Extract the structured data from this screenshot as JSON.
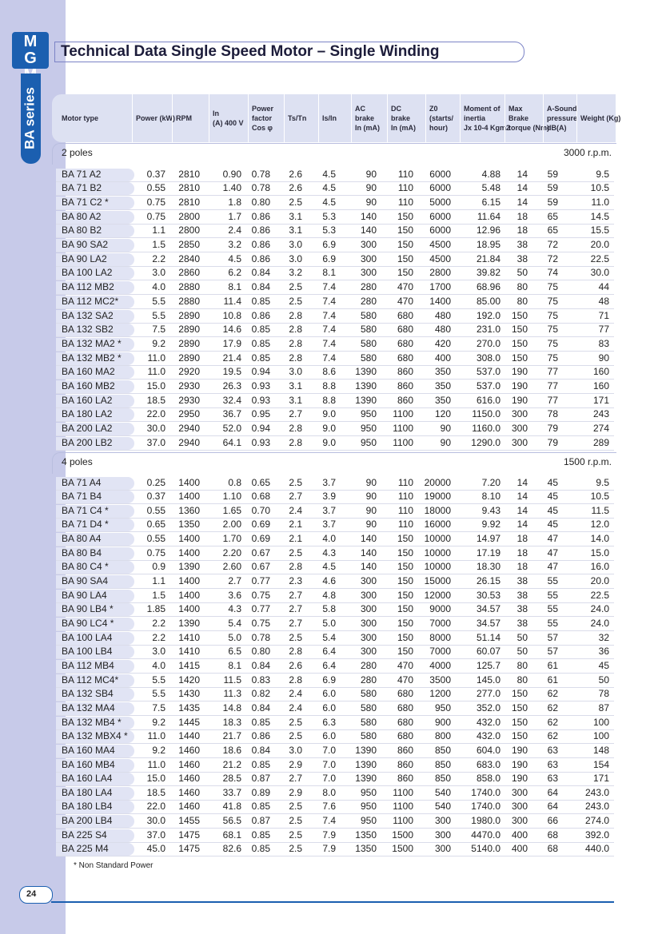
{
  "logo": "MGM",
  "side_tab": "BA series",
  "title": "Technical Data Single Speed Motor – Single Winding",
  "table": {
    "header": [
      [
        "Motor type"
      ],
      [
        "Power (kW)"
      ],
      [
        "RPM"
      ],
      [
        "In",
        "(A) 400 V"
      ],
      [
        "Power",
        "factor",
        "Cos φ"
      ],
      [
        "Ts/Tn"
      ],
      [
        "Is/In"
      ],
      [
        "AC",
        "brake",
        "In (mA)"
      ],
      [
        "DC",
        "brake",
        "In (mA)"
      ],
      [
        "Z0",
        "(starts/",
        "hour)"
      ],
      [
        "Moment of",
        "inertia",
        "Jx 10-4 Kgm2"
      ],
      [
        "Max",
        "Brake",
        "torque (Nm)"
      ],
      [
        "A-Sound",
        "pressure",
        "dB(A)"
      ],
      [
        "Weight (Kg)"
      ]
    ],
    "sections": [
      {
        "label": "2 poles",
        "speed": "3000 r.p.m.",
        "rows": [
          [
            "BA 71 A2",
            "0.37",
            "2810",
            "0.90",
            "0.78",
            "2.6",
            "4.5",
            "90",
            "110",
            "6000",
            "4.88",
            "14",
            "59",
            "9.5"
          ],
          [
            "BA 71 B2",
            "0.55",
            "2810",
            "1.40",
            "0.78",
            "2.6",
            "4.5",
            "90",
            "110",
            "6000",
            "5.48",
            "14",
            "59",
            "10.5"
          ],
          [
            "BA 71 C2 *",
            "0.75",
            "2810",
            "1.8",
            "0.80",
            "2.5",
            "4.5",
            "90",
            "110",
            "5000",
            "6.15",
            "14",
            "59",
            "11.0"
          ],
          [
            "BA 80 A2",
            "0.75",
            "2800",
            "1.7",
            "0.86",
            "3.1",
            "5.3",
            "140",
            "150",
            "6000",
            "11.64",
            "18",
            "65",
            "14.5"
          ],
          [
            "BA 80 B2",
            "1.1",
            "2800",
            "2.4",
            "0.86",
            "3.1",
            "5.3",
            "140",
            "150",
            "6000",
            "12.96",
            "18",
            "65",
            "15.5"
          ],
          [
            "BA 90 SA2",
            "1.5",
            "2850",
            "3.2",
            "0.86",
            "3.0",
            "6.9",
            "300",
            "150",
            "4500",
            "18.95",
            "38",
            "72",
            "20.0"
          ],
          [
            "BA 90 LA2",
            "2.2",
            "2840",
            "4.5",
            "0.86",
            "3.0",
            "6.9",
            "300",
            "150",
            "4500",
            "21.84",
            "38",
            "72",
            "22.5"
          ],
          [
            "BA 100 LA2",
            "3.0",
            "2860",
            "6.2",
            "0.84",
            "3.2",
            "8.1",
            "300",
            "150",
            "2800",
            "39.82",
            "50",
            "74",
            "30.0"
          ],
          [
            "BA 112 MB2",
            "4.0",
            "2880",
            "8.1",
            "0.84",
            "2.5",
            "7.4",
            "280",
            "470",
            "1700",
            "68.96",
            "80",
            "75",
            "44"
          ],
          [
            "BA 112 MC2*",
            "5.5",
            "2880",
            "11.4",
            "0.85",
            "2.5",
            "7.4",
            "280",
            "470",
            "1400",
            "85.00",
            "80",
            "75",
            "48"
          ],
          [
            "BA 132 SA2",
            "5.5",
            "2890",
            "10.8",
            "0.86",
            "2.8",
            "7.4",
            "580",
            "680",
            "480",
            "192.0",
            "150",
            "75",
            "71"
          ],
          [
            "BA 132 SB2",
            "7.5",
            "2890",
            "14.6",
            "0.85",
            "2.8",
            "7.4",
            "580",
            "680",
            "480",
            "231.0",
            "150",
            "75",
            "77"
          ],
          [
            "BA 132 MA2 *",
            "9.2",
            "2890",
            "17.9",
            "0.85",
            "2.8",
            "7.4",
            "580",
            "680",
            "420",
            "270.0",
            "150",
            "75",
            "83"
          ],
          [
            "BA 132 MB2 *",
            "11.0",
            "2890",
            "21.4",
            "0.85",
            "2.8",
            "7.4",
            "580",
            "680",
            "400",
            "308.0",
            "150",
            "75",
            "90"
          ],
          [
            "BA 160 MA2",
            "11.0",
            "2920",
            "19.5",
            "0.94",
            "3.0",
            "8.6",
            "1390",
            "860",
            "350",
            "537.0",
            "190",
            "77",
            "160"
          ],
          [
            "BA 160 MB2",
            "15.0",
            "2930",
            "26.3",
            "0.93",
            "3.1",
            "8.8",
            "1390",
            "860",
            "350",
            "537.0",
            "190",
            "77",
            "160"
          ],
          [
            "BA 160 LA2",
            "18.5",
            "2930",
            "32.4",
            "0.93",
            "3.1",
            "8.8",
            "1390",
            "860",
            "350",
            "616.0",
            "190",
            "77",
            "171"
          ],
          [
            "BA 180 LA2",
            "22.0",
            "2950",
            "36.7",
            "0.95",
            "2.7",
            "9.0",
            "950",
            "1100",
            "120",
            "1150.0",
            "300",
            "78",
            "243"
          ],
          [
            "BA 200 LA2",
            "30.0",
            "2940",
            "52.0",
            "0.94",
            "2.8",
            "9.0",
            "950",
            "1100",
            "90",
            "1160.0",
            "300",
            "79",
            "274"
          ],
          [
            "BA 200 LB2",
            "37.0",
            "2940",
            "64.1",
            "0.93",
            "2.8",
            "9.0",
            "950",
            "1100",
            "90",
            "1290.0",
            "300",
            "79",
            "289"
          ]
        ]
      },
      {
        "label": "4 poles",
        "speed": "1500 r.p.m.",
        "rows": [
          [
            "BA 71 A4",
            "0.25",
            "1400",
            "0.8",
            "0.65",
            "2.5",
            "3.7",
            "90",
            "110",
            "20000",
            "7.20",
            "14",
            "45",
            "9.5"
          ],
          [
            "BA 71 B4",
            "0.37",
            "1400",
            "1.10",
            "0.68",
            "2.7",
            "3.9",
            "90",
            "110",
            "19000",
            "8.10",
            "14",
            "45",
            "10.5"
          ],
          [
            "BA 71 C4 *",
            "0.55",
            "1360",
            "1.65",
            "0.70",
            "2.4",
            "3.7",
            "90",
            "110",
            "18000",
            "9.43",
            "14",
            "45",
            "11.5"
          ],
          [
            "BA 71 D4 *",
            "0.65",
            "1350",
            "2.00",
            "0.69",
            "2.1",
            "3.7",
            "90",
            "110",
            "16000",
            "9.92",
            "14",
            "45",
            "12.0"
          ],
          [
            "BA 80 A4",
            "0.55",
            "1400",
            "1.70",
            "0.69",
            "2.1",
            "4.0",
            "140",
            "150",
            "10000",
            "14.97",
            "18",
            "47",
            "14.0"
          ],
          [
            "BA 80 B4",
            "0.75",
            "1400",
            "2.20",
            "0.67",
            "2.5",
            "4.3",
            "140",
            "150",
            "10000",
            "17.19",
            "18",
            "47",
            "15.0"
          ],
          [
            "BA 80 C4 *",
            "0.9",
            "1390",
            "2.60",
            "0.67",
            "2.8",
            "4.5",
            "140",
            "150",
            "10000",
            "18.30",
            "18",
            "47",
            "16.0"
          ],
          [
            "BA 90 SA4",
            "1.1",
            "1400",
            "2.7",
            "0.77",
            "2.3",
            "4.6",
            "300",
            "150",
            "15000",
            "26.15",
            "38",
            "55",
            "20.0"
          ],
          [
            "BA 90 LA4",
            "1.5",
            "1400",
            "3.6",
            "0.75",
            "2.7",
            "4.8",
            "300",
            "150",
            "12000",
            "30.53",
            "38",
            "55",
            "22.5"
          ],
          [
            "BA 90 LB4 *",
            "1.85",
            "1400",
            "4.3",
            "0.77",
            "2.7",
            "5.8",
            "300",
            "150",
            "9000",
            "34.57",
            "38",
            "55",
            "24.0"
          ],
          [
            "BA 90 LC4 *",
            "2.2",
            "1390",
            "5.4",
            "0.75",
            "2.7",
            "5.0",
            "300",
            "150",
            "7000",
            "34.57",
            "38",
            "55",
            "24.0"
          ],
          [
            "BA 100 LA4",
            "2.2",
            "1410",
            "5.0",
            "0.78",
            "2.5",
            "5.4",
            "300",
            "150",
            "8000",
            "51.14",
            "50",
            "57",
            "32"
          ],
          [
            "BA 100 LB4",
            "3.0",
            "1410",
            "6.5",
            "0.80",
            "2.8",
            "6.4",
            "300",
            "150",
            "7000",
            "60.07",
            "50",
            "57",
            "36"
          ],
          [
            "BA 112 MB4",
            "4.0",
            "1415",
            "8.1",
            "0.84",
            "2.6",
            "6.4",
            "280",
            "470",
            "4000",
            "125.7",
            "80",
            "61",
            "45"
          ],
          [
            "BA 112 MC4*",
            "5.5",
            "1420",
            "11.5",
            "0.83",
            "2.8",
            "6.9",
            "280",
            "470",
            "3500",
            "145.0",
            "80",
            "61",
            "50"
          ],
          [
            "BA 132 SB4",
            "5.5",
            "1430",
            "11.3",
            "0.82",
            "2.4",
            "6.0",
            "580",
            "680",
            "1200",
            "277.0",
            "150",
            "62",
            "78"
          ],
          [
            "BA 132 MA4",
            "7.5",
            "1435",
            "14.8",
            "0.84",
            "2.4",
            "6.0",
            "580",
            "680",
            "950",
            "352.0",
            "150",
            "62",
            "87"
          ],
          [
            "BA 132 MB4 *",
            "9.2",
            "1445",
            "18.3",
            "0.85",
            "2.5",
            "6.3",
            "580",
            "680",
            "900",
            "432.0",
            "150",
            "62",
            "100"
          ],
          [
            "BA 132 MBX4 *",
            "11.0",
            "1440",
            "21.7",
            "0.86",
            "2.5",
            "6.0",
            "580",
            "680",
            "800",
            "432.0",
            "150",
            "62",
            "100"
          ],
          [
            "BA 160 MA4",
            "9.2",
            "1460",
            "18.6",
            "0.84",
            "3.0",
            "7.0",
            "1390",
            "860",
            "850",
            "604.0",
            "190",
            "63",
            "148"
          ],
          [
            "BA 160 MB4",
            "11.0",
            "1460",
            "21.2",
            "0.85",
            "2.9",
            "7.0",
            "1390",
            "860",
            "850",
            "683.0",
            "190",
            "63",
            "154"
          ],
          [
            "BA 160 LA4",
            "15.0",
            "1460",
            "28.5",
            "0.87",
            "2.7",
            "7.0",
            "1390",
            "860",
            "850",
            "858.0",
            "190",
            "63",
            "171"
          ],
          [
            "BA 180 LA4",
            "18.5",
            "1460",
            "33.7",
            "0.89",
            "2.9",
            "8.0",
            "950",
            "1100",
            "540",
            "1740.0",
            "300",
            "64",
            "243.0"
          ],
          [
            "BA 180 LB4",
            "22.0",
            "1460",
            "41.8",
            "0.85",
            "2.5",
            "7.6",
            "950",
            "1100",
            "540",
            "1740.0",
            "300",
            "64",
            "243.0"
          ],
          [
            "BA 200 LB4",
            "30.0",
            "1455",
            "56.5",
            "0.87",
            "2.5",
            "7.4",
            "950",
            "1100",
            "300",
            "1980.0",
            "300",
            "66",
            "274.0"
          ],
          [
            "BA 225 S4",
            "37.0",
            "1475",
            "68.1",
            "0.85",
            "2.5",
            "7.9",
            "1350",
            "1500",
            "300",
            "4470.0",
            "400",
            "68",
            "392.0"
          ],
          [
            "BA 225 M4",
            "45.0",
            "1475",
            "82.6",
            "0.85",
            "2.5",
            "7.9",
            "1350",
            "1500",
            "300",
            "5140.0",
            "400",
            "68",
            "440.0"
          ]
        ]
      }
    ]
  },
  "footnote": "* Non Standard Power",
  "page_number": "24"
}
